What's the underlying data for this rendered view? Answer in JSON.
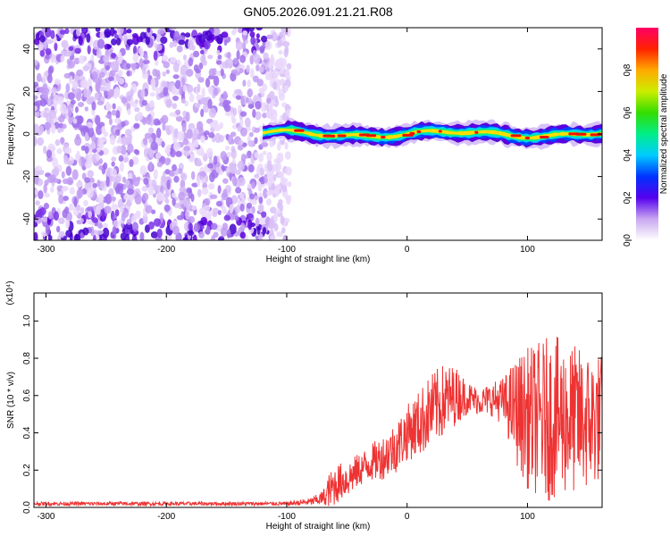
{
  "title": "GN05.2026.091.21.21.R08",
  "chart_data": [
    {
      "type": "heatmap",
      "title": "GN05.2026.091.21.21.R08",
      "xlabel": "Height of straight line (km)",
      "ylabel": "Frequency (Hz)",
      "xlim": [
        -310,
        162
      ],
      "ylim": [
        -50,
        50
      ],
      "xticks": [
        -300,
        -200,
        -100,
        0,
        100
      ],
      "yticks": [
        -40,
        -20,
        0,
        20,
        40
      ],
      "regions": [
        {
          "name": "broadband noise",
          "x_range": [
            -310,
            -98
          ],
          "freq_range": [
            -50,
            50
          ]
        },
        {
          "name": "signal band",
          "x_range": [
            -120,
            162
          ],
          "freq_center": 0,
          "freq_halfwidth": 5
        }
      ],
      "colorbar": {
        "label": "Normalized spectral amplitude",
        "range": [
          0,
          1
        ],
        "ticks": [
          "0.0",
          "0.2",
          "0.4",
          "0.6",
          "0.8"
        ]
      }
    },
    {
      "type": "line",
      "xlabel": "Height of straight line (km)",
      "ylabel": "SNR (10 * v/v)",
      "exponent_label": "(x10⁴)",
      "xlim": [
        -310,
        162
      ],
      "ylim": [
        0,
        1.15
      ],
      "xticks": [
        -300,
        -200,
        -100,
        0,
        100
      ],
      "yticks": [
        "0.0",
        "0.2",
        "0.4",
        "0.6",
        "0.8",
        "1.0"
      ],
      "color": "#ee3333",
      "series": [
        {
          "name": "SNR",
          "x": [
            -310,
            -250,
            -150,
            -100,
            -80,
            -70,
            -65,
            -60,
            -55,
            -50,
            -40,
            -30,
            -20,
            -10,
            0,
            10,
            20,
            30,
            40,
            50,
            60,
            70,
            80,
            90,
            100,
            110,
            120,
            130,
            140,
            150,
            160
          ],
          "base": [
            0.02,
            0.02,
            0.02,
            0.02,
            0.03,
            0.05,
            0.08,
            0.12,
            0.14,
            0.15,
            0.2,
            0.24,
            0.27,
            0.32,
            0.4,
            0.45,
            0.52,
            0.57,
            0.6,
            0.59,
            0.57,
            0.58,
            0.57,
            0.52,
            0.48,
            0.47,
            0.48,
            0.48,
            0.47,
            0.46,
            0.48
          ],
          "amp": [
            0.01,
            0.01,
            0.01,
            0.01,
            0.02,
            0.04,
            0.1,
            0.11,
            0.1,
            0.1,
            0.09,
            0.1,
            0.12,
            0.14,
            0.15,
            0.18,
            0.2,
            0.2,
            0.16,
            0.09,
            0.07,
            0.09,
            0.13,
            0.28,
            0.38,
            0.42,
            0.45,
            0.42,
            0.4,
            0.38,
            0.35
          ]
        }
      ]
    }
  ]
}
